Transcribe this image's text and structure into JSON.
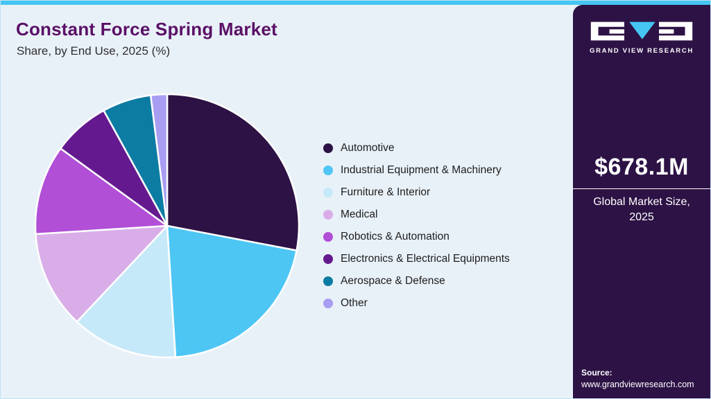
{
  "theme": {
    "accent_cyan": "#45c5f2",
    "panel_purple": "#2d1245",
    "background": "#e9f1f8",
    "title_color": "#5a1066",
    "text_dark": "#1d1d1d"
  },
  "header": {
    "title": "Constant Force Spring Market",
    "subtitle": "Share, by End Use, 2025 (%)"
  },
  "chart_data": {
    "type": "pie",
    "title": "Constant Force Spring Market Share, by End Use, 2025 (%)",
    "units": "%",
    "start_angle_deg": 0,
    "direction": "clockwise",
    "legend_position": "right",
    "values_estimated": true,
    "segments": [
      {
        "label": "Automotive",
        "value": 28,
        "color": "#2d1245"
      },
      {
        "label": "Industrial Equipment & Machinery",
        "value": 21,
        "color": "#4dc6f4"
      },
      {
        "label": "Furniture & Interior",
        "value": 13,
        "color": "#c6e9f9"
      },
      {
        "label": "Medical",
        "value": 12,
        "color": "#d9aee8"
      },
      {
        "label": "Robotics & Automation",
        "value": 11,
        "color": "#b14fd6"
      },
      {
        "label": "Electronics & Electrical Equipments",
        "value": 7,
        "color": "#641a8e"
      },
      {
        "label": "Aerospace & Defense",
        "value": 6,
        "color": "#0d7ca3"
      },
      {
        "label": "Other",
        "value": 2,
        "color": "#a79df2"
      }
    ]
  },
  "sidebar": {
    "logo_text": "GRAND VIEW RESEARCH",
    "market_size": "$678.1M",
    "market_size_label_line1": "Global Market Size,",
    "market_size_label_line2": "2025",
    "source_label": "Source:",
    "source_url": "www.grandviewresearch.com"
  }
}
